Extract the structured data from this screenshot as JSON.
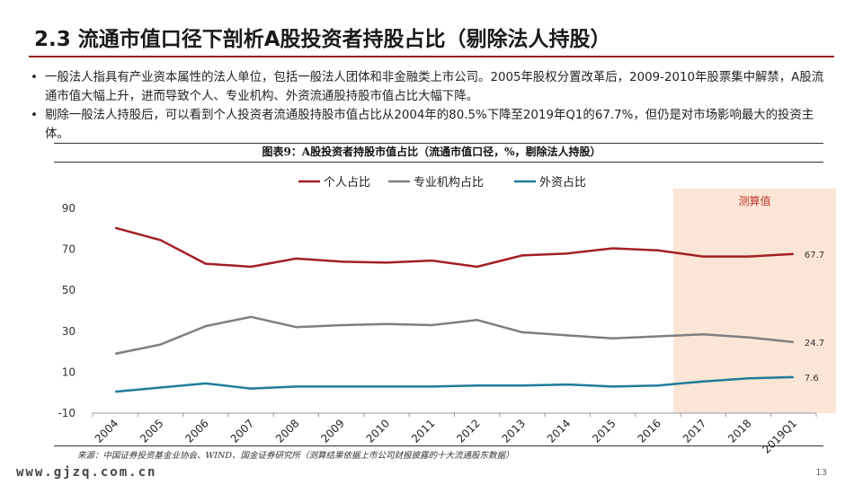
{
  "slide": {
    "title": "2.3 流通市值口径下剖析A股投资者持股占比（剔除法人持股）",
    "bullets": [
      "一般法人指具有产业资本属性的法人单位，包括一般法人团体和非金融类上市公司。2005年股权分置改革后，2009-2010年股票集中解禁，A股流通市值大幅上升，进而导致个人、专业机构、外资流通股持股市值占比大幅下降。",
      "剔除一般法人持股后，可以看到个人投资者流通股持股市值占比从2004年的80.5%下降至2019年Q1的67.7%，但仍是对市场影响最大的投资主体。"
    ],
    "bullet_symbol": "•",
    "figure_title": "图表9：A股投资者持股市值占比（流通市值口径，%，剔除法人持股）",
    "source": "来源：中国证券投资基金业协会、WIND、国金证券研究所（测算结果依据上市公司财报披露的十大流通股东数据）",
    "footer_logo": "www.gjzq.com.cn",
    "page_number": "13"
  },
  "chart_data": {
    "type": "line",
    "categories": [
      "2004",
      "2005",
      "2006",
      "2007",
      "2008",
      "2009",
      "2010",
      "2011",
      "2012",
      "2013",
      "2014",
      "2015",
      "2016",
      "2017",
      "2018",
      "2019Q1"
    ],
    "series": [
      {
        "name": "个人占比",
        "color": "#a31f24",
        "values": [
          80.5,
          74.5,
          63.0,
          61.5,
          65.5,
          64.0,
          63.5,
          64.5,
          61.5,
          67.0,
          68.0,
          70.5,
          69.5,
          66.5,
          66.5,
          67.7
        ],
        "end_label": "67.7"
      },
      {
        "name": "专业机构占比",
        "color": "#7f7f7f",
        "values": [
          19.0,
          23.5,
          32.5,
          37.0,
          32.0,
          33.0,
          33.5,
          33.0,
          35.5,
          29.5,
          28.0,
          26.5,
          27.5,
          28.5,
          27.0,
          24.7
        ],
        "end_label": "24.7"
      },
      {
        "name": "外资占比",
        "color": "#1f7b9a",
        "values": [
          0.5,
          2.5,
          4.5,
          2.0,
          3.0,
          3.0,
          3.0,
          3.0,
          3.5,
          3.5,
          4.0,
          3.0,
          3.5,
          5.5,
          7.0,
          7.6
        ],
        "end_label": "7.6"
      }
    ],
    "y_ticks": [
      90,
      70,
      50,
      30,
      10,
      -10
    ],
    "ylim": [
      -10,
      90
    ],
    "grid": false,
    "legend_position": "top-left",
    "shaded_region": {
      "from": "2017",
      "to": "2019Q1",
      "label": "测算值",
      "fill": "#fbe5d6",
      "label_color": "#c0392b"
    }
  }
}
